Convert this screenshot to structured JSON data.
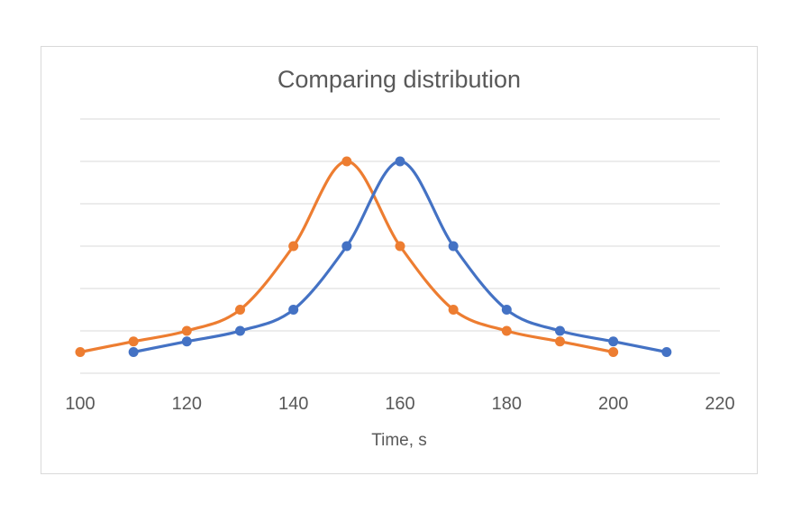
{
  "chart_data": {
    "type": "line",
    "title": "Comparing distribution",
    "xlabel": "Time, s",
    "ylabel": "",
    "xlim": [
      100,
      220
    ],
    "x_ticks": [
      "100",
      "120",
      "140",
      "160",
      "180",
      "200",
      "220"
    ],
    "ylim": [
      0,
      6
    ],
    "y_gridlines": [
      0,
      1,
      2,
      3,
      4,
      5,
      6
    ],
    "y_tick_labels_visible": false,
    "grid": true,
    "legend": "none",
    "smooth": true,
    "series": [
      {
        "color": "#4472c4",
        "x": [
          110,
          120,
          130,
          140,
          150,
          160,
          170,
          180,
          190,
          200,
          210
        ],
        "y": [
          0.5,
          0.75,
          1,
          1.5,
          3,
          5,
          3,
          1.5,
          1,
          0.75,
          0.5
        ]
      },
      {
        "color": "#ed7d31",
        "x": [
          100,
          110,
          120,
          130,
          140,
          150,
          160,
          170,
          180,
          190,
          200
        ],
        "y": [
          0.5,
          0.75,
          1,
          1.5,
          3,
          5,
          3,
          1.5,
          1,
          0.75,
          0.5
        ]
      }
    ]
  }
}
